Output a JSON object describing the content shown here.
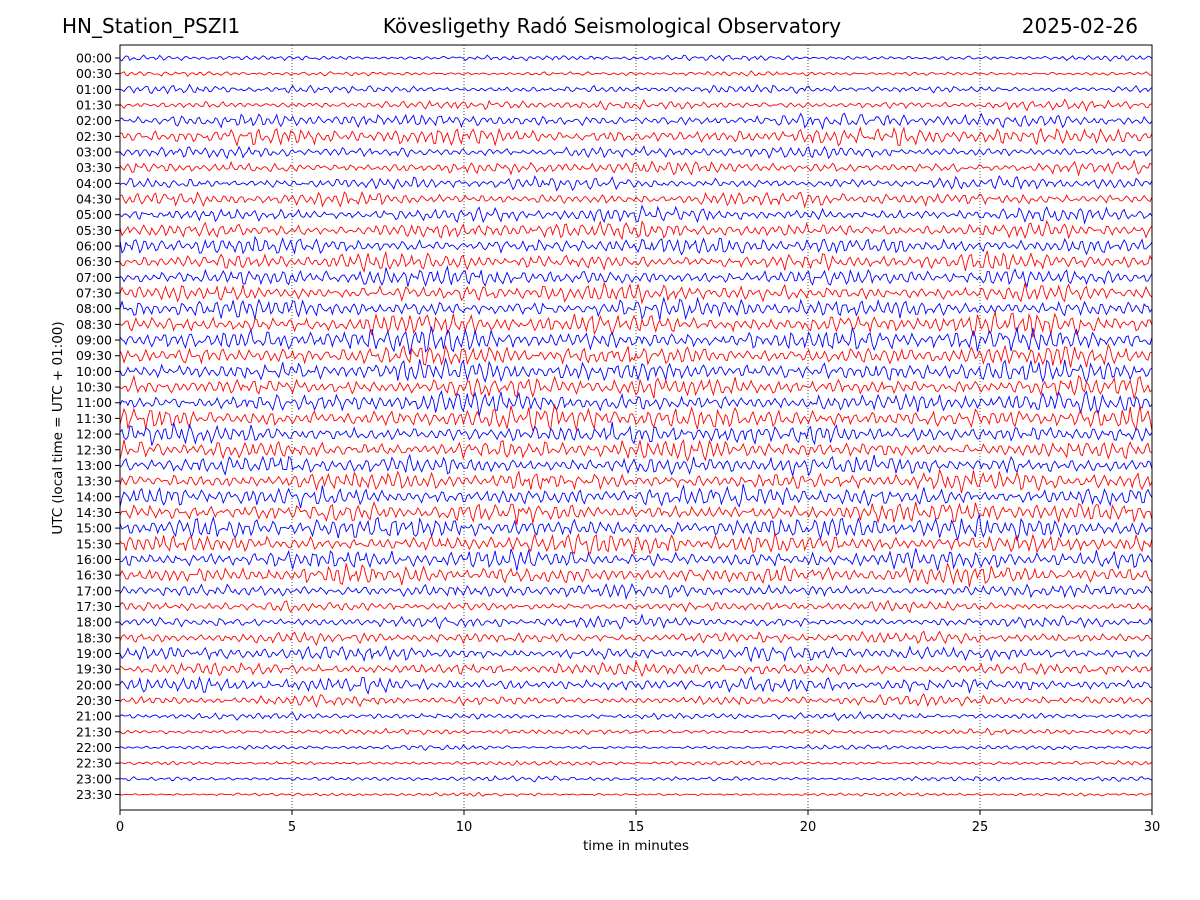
{
  "header": {
    "station": "HN_Station_PSZI1",
    "observatory": "Kövesligethy Radó Seismological Observatory",
    "date": "2025-02-26"
  },
  "chart_data": {
    "type": "line",
    "title": "Kövesligethy Radó Seismological Observatory",
    "xlabel": "time in minutes",
    "ylabel": "UTC (local time = UTC + 01:00)",
    "xlim": [
      0,
      30
    ],
    "xticks": [
      0,
      5,
      10,
      15,
      20,
      25,
      30
    ],
    "grid": "vertical dotted at 5-minute ticks",
    "colors": [
      "#0000ff",
      "#ff0000"
    ],
    "row_labels": [
      "00:00",
      "00:30",
      "01:00",
      "01:30",
      "02:00",
      "02:30",
      "03:00",
      "03:30",
      "04:00",
      "04:30",
      "05:00",
      "05:30",
      "06:00",
      "06:30",
      "07:00",
      "07:30",
      "08:00",
      "08:30",
      "09:00",
      "09:30",
      "10:00",
      "10:30",
      "11:00",
      "11:30",
      "12:00",
      "12:30",
      "13:00",
      "13:30",
      "14:00",
      "14:30",
      "15:00",
      "15:30",
      "16:00",
      "16:30",
      "17:00",
      "17:30",
      "18:00",
      "18:30",
      "19:00",
      "19:30",
      "20:00",
      "20:30",
      "21:00",
      "21:30",
      "22:00",
      "22:30",
      "23:00",
      "23:30"
    ],
    "relative_amplitude": [
      0.25,
      0.2,
      0.35,
      0.4,
      0.6,
      0.75,
      0.5,
      0.55,
      0.55,
      0.6,
      0.65,
      0.75,
      0.8,
      0.75,
      0.8,
      0.8,
      0.85,
      0.95,
      1.0,
      0.95,
      0.95,
      0.9,
      0.9,
      1.0,
      0.9,
      0.85,
      0.85,
      0.85,
      0.9,
      0.9,
      0.95,
      0.9,
      0.85,
      0.8,
      0.6,
      0.45,
      0.5,
      0.5,
      0.65,
      0.6,
      0.65,
      0.45,
      0.3,
      0.25,
      0.2,
      0.2,
      0.22,
      0.15
    ]
  }
}
